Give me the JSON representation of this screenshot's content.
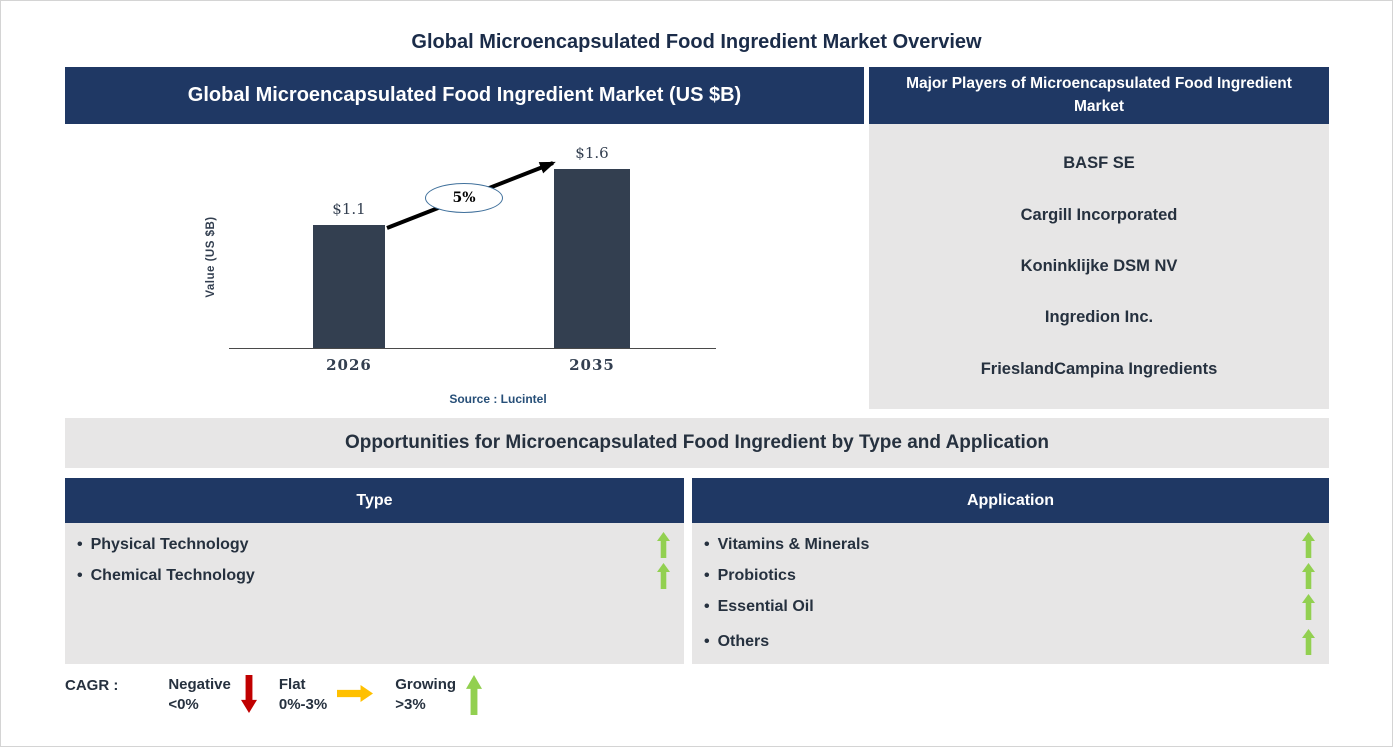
{
  "page": {
    "title": "Global Microencapsulated Food Ingredient Market Overview"
  },
  "market_chart": {
    "header": "Global Microencapsulated Food Ingredient Market (US $B)",
    "ylabel": "Value (US $B)",
    "cagr_badge": "5%",
    "source": "Source : Lucintel"
  },
  "chart_data": {
    "type": "bar",
    "title": "Global Microencapsulated Food Ingredient Market (US $B)",
    "categories": [
      "2026",
      "2035"
    ],
    "values": [
      1.1,
      1.6
    ],
    "value_labels": [
      "$1.1",
      "$1.6"
    ],
    "ylabel": "Value (US $B)",
    "ylim": [
      0,
      2
    ],
    "annotation": "5% CAGR growth arrow from 2026 bar to 2035 bar",
    "source": "Source : Lucintel",
    "bar_color": "#333F50",
    "grid": false,
    "legend": false
  },
  "players": {
    "header": "Major Players of Microencapsulated Food Ingredient Market",
    "items": [
      "BASF SE",
      "Cargill Incorporated",
      "Koninklijke DSM NV",
      "Ingredion Inc.",
      "FrieslandCampina Ingredients"
    ]
  },
  "opportunities": {
    "banner": "Opportunities for Microencapsulated Food Ingredient by Type and Application",
    "type": {
      "header": "Type",
      "items": [
        {
          "label": "Physical Technology",
          "trend": "growing"
        },
        {
          "label": "Chemical Technology",
          "trend": "growing"
        }
      ]
    },
    "application": {
      "header": "Application",
      "items": [
        {
          "label": "Vitamins & Minerals",
          "trend": "growing"
        },
        {
          "label": "Probiotics",
          "trend": "growing"
        },
        {
          "label": "Essential Oil",
          "trend": "growing"
        },
        {
          "label": "Others",
          "trend": "growing"
        }
      ]
    }
  },
  "legend": {
    "label": "CAGR :",
    "items": [
      {
        "name": "Negative",
        "range": "<0%",
        "direction": "down",
        "color": "#C00000"
      },
      {
        "name": "Flat",
        "range": "0%-3%",
        "direction": "right",
        "color": "#FFC000"
      },
      {
        "name": "Growing",
        "range": ">3%",
        "direction": "up",
        "color": "#92D050"
      }
    ]
  },
  "colors": {
    "header_navy": "#1F3864",
    "bar_slate": "#333F50",
    "panel_gray": "#E7E6E6",
    "text_dark": "#26313F",
    "source_blue": "#274F78",
    "ellipse_border": "#41719C",
    "growing_green": "#92D050",
    "negative_red": "#C00000",
    "flat_amber": "#FFC000"
  }
}
